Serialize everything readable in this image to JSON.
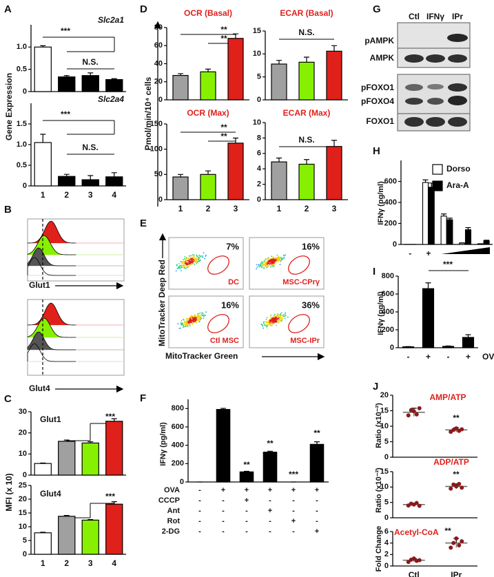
{
  "chart_data": [
    {
      "type": "bar",
      "title": "Slc2a1",
      "values": [
        1.0,
        0.33,
        0.36,
        0.27
      ],
      "errors": [
        0.03,
        0.03,
        0.06,
        0.02
      ],
      "colors": [
        "#ffffff",
        "#000000",
        "#000000",
        "#000000"
      ],
      "ylim": [
        0,
        1.5
      ],
      "yticks": [
        0,
        0.5,
        {
          "value": 1,
          "label": "1.0"
        }
      ],
      "annotations": [
        "***",
        "N.S."
      ]
    },
    {
      "type": "bar",
      "title": "Slc2a4",
      "categories": [
        "1",
        "2",
        "3",
        "4"
      ],
      "values": [
        1.05,
        0.23,
        0.15,
        0.22
      ],
      "errors": [
        0.2,
        0.05,
        0.1,
        0.1
      ],
      "colors": [
        "#ffffff",
        "#000000",
        "#000000",
        "#000000"
      ],
      "ylim": [
        0,
        2
      ],
      "yticks": [
        0,
        0.5,
        {
          "value": 1,
          "label": "1.0"
        },
        1.5
      ],
      "annotations": [
        "***",
        "N.S."
      ]
    },
    {
      "type": "bar",
      "title": "Glut1",
      "values": [
        5.5,
        16,
        15.2,
        25.5
      ],
      "errors": [
        0.2,
        0.6,
        0.6,
        1.2
      ],
      "colors": [
        "#ffffff",
        "#a0a0a0",
        "#86f000",
        "#e0201b"
      ],
      "ylim": [
        0,
        30
      ],
      "yticks": [
        0,
        10,
        20,
        30
      ],
      "annotations": [
        "***"
      ]
    },
    {
      "type": "bar",
      "title": "Glut4",
      "categories": [
        "1",
        "2",
        "3",
        "4"
      ],
      "values": [
        7.8,
        13.8,
        12.4,
        18.2
      ],
      "errors": [
        0.2,
        0.3,
        0.2,
        0.9
      ],
      "colors": [
        "#ffffff",
        "#a0a0a0",
        "#86f000",
        "#e0201b"
      ],
      "ylim": [
        0,
        25
      ],
      "yticks": [
        0,
        5,
        10,
        15,
        20,
        25
      ],
      "annotations": [
        "***"
      ]
    },
    {
      "type": "bar",
      "title": "OCR (Basal)",
      "values": [
        27,
        31,
        68
      ],
      "errors": [
        2,
        3,
        5
      ],
      "colors": [
        "#a0a0a0",
        "#86f000",
        "#e0201b"
      ],
      "ylim": [
        0,
        80
      ],
      "yticks": [
        0,
        20,
        40,
        60,
        80
      ],
      "annotations": [
        "**",
        "**"
      ]
    },
    {
      "type": "bar",
      "title": "ECAR (Basal)",
      "values": [
        7.8,
        8.2,
        10.6
      ],
      "errors": [
        0.8,
        1.1,
        1.2
      ],
      "colors": [
        "#a0a0a0",
        "#86f000",
        "#e0201b"
      ],
      "ylim": [
        0,
        15
      ],
      "yticks": [
        0,
        5,
        10,
        15
      ],
      "annotations": [
        "N.S."
      ]
    },
    {
      "type": "bar",
      "title": "OCR (Max)",
      "categories": [
        "1",
        "2",
        "3"
      ],
      "values": [
        45,
        50,
        112
      ],
      "errors": [
        5,
        7,
        10
      ],
      "colors": [
        "#a0a0a0",
        "#86f000",
        "#e0201b"
      ],
      "ylim": [
        0,
        150
      ],
      "yticks": [
        0,
        50,
        100,
        150
      ],
      "annotations": [
        "**",
        "**"
      ]
    },
    {
      "type": "bar",
      "title": "ECAR (Max)",
      "categories": [
        "1",
        "2",
        "3"
      ],
      "values": [
        4.9,
        4.6,
        6.9
      ],
      "errors": [
        0.5,
        0.6,
        0.8
      ],
      "colors": [
        "#a0a0a0",
        "#86f000",
        "#e0201b"
      ],
      "ylim": [
        0,
        10
      ],
      "yticks": [
        0,
        2,
        4,
        6,
        8,
        10
      ],
      "annotations": [
        "N.S."
      ]
    },
    {
      "type": "bar",
      "ylabel": "IFNγ (pg/ml)",
      "values": [
        0,
        790,
        110,
        325,
        0,
        410
      ],
      "errors": [
        0,
        12,
        6,
        10,
        0,
        28
      ],
      "color": "#000000",
      "ylim": [
        0,
        900
      ],
      "yticks": [
        0,
        200,
        400,
        600,
        800
      ],
      "annotations": [
        "**",
        "**",
        "***",
        "**"
      ],
      "conditions": [
        {
          "name": "OVA",
          "signs": [
            "-",
            "+",
            "+",
            "+",
            "+",
            "+"
          ]
        },
        {
          "name": "CCCP",
          "signs": [
            "-",
            "-",
            "+",
            "-",
            "-",
            "-"
          ]
        },
        {
          "name": "Ant",
          "signs": [
            "-",
            "-",
            "-",
            "+",
            "-",
            "-"
          ]
        },
        {
          "name": "Rot",
          "signs": [
            "-",
            "-",
            "-",
            "-",
            "+",
            "-"
          ]
        },
        {
          "name": "2-DG",
          "signs": [
            "-",
            "-",
            "-",
            "-",
            "-",
            "+"
          ]
        }
      ]
    },
    {
      "type": "grouped_bar",
      "ylabel": "IFNγ (pg/ml)",
      "categories": [
        "-",
        "+",
        null,
        null,
        null
      ],
      "series": [
        {
          "name": "Dorso",
          "color": "#ffffff",
          "values": [
            0,
            590,
            270,
            12,
            5
          ],
          "errors": [
            0,
            25,
            20,
            3,
            2
          ]
        },
        {
          "name": "Ara-A",
          "color": "#000000",
          "values": [
            0,
            545,
            235,
            140,
            35
          ],
          "errors": [
            0,
            40,
            15,
            20,
            5
          ]
        }
      ],
      "ylim": [
        0,
        800
      ],
      "yticks": [
        0,
        200,
        400,
        600
      ]
    },
    {
      "type": "bar",
      "ylabel": "IFNγ (pg/ml)",
      "categories": [
        "-",
        "+",
        "-",
        "+"
      ],
      "xlabel": "OVA",
      "values": [
        10,
        660,
        15,
        115
      ],
      "errors": [
        3,
        65,
        4,
        30
      ],
      "color": "#000000",
      "ylim": [
        0,
        800
      ],
      "yticks": [
        0,
        200,
        400,
        600,
        800
      ],
      "annotations": [
        "***"
      ]
    },
    {
      "type": "dot",
      "title": "AMP/ATP",
      "ylabel": "Ratio (x10⁻²)",
      "points": [
        [
          13.5,
          15.2,
          14.8,
          13.8,
          15.8
        ],
        [
          8.2,
          8.8,
          9.3,
          8.5,
          9.0
        ]
      ],
      "means": [
        14.5,
        8.8
      ],
      "errors": [
        1.3,
        0.7
      ],
      "color": "#8b1a1a",
      "ylim": [
        0,
        20
      ],
      "yticks": [
        0,
        5,
        10,
        15,
        20
      ],
      "annotations": [
        "**"
      ]
    },
    {
      "type": "dot",
      "title": "ADP/ATP",
      "ylabel": "Ratio (x10⁻²)",
      "points": [
        [
          4.0,
          4.6,
          4.3,
          4.8,
          3.9
        ],
        [
          9.5,
          10.8,
          10.2,
          11.0,
          9.8
        ]
      ],
      "means": [
        4.3,
        10.2
      ],
      "errors": [
        0.5,
        0.8
      ],
      "color": "#8b1a1a",
      "ylim": [
        0,
        15
      ],
      "yticks": [
        0,
        5,
        10,
        15
      ],
      "annotations": [
        "**"
      ]
    },
    {
      "type": "dot",
      "title": "Acetyl-CoA",
      "ylabel": "Fold Change",
      "categories": [
        "Ctl",
        "IPr"
      ],
      "points": [
        [
          0.7,
          1.1,
          1.3,
          0.9,
          1.0
        ],
        [
          3.2,
          4.0,
          4.8,
          3.6,
          4.3
        ]
      ],
      "means": [
        1.0,
        4.0
      ],
      "errors": [
        0.3,
        0.8
      ],
      "color": "#8b1a1a",
      "ylim": [
        0,
        6
      ],
      "yticks": [
        0,
        2,
        4,
        6
      ],
      "annotations": [
        "**"
      ]
    }
  ],
  "panel_labels": [
    "A",
    "B",
    "C",
    "D",
    "E",
    "F",
    "G",
    "H",
    "I",
    "J"
  ],
  "panel_a": {
    "ylabel": "Gene Expression"
  },
  "panel_b": {
    "markers": [
      "Glut1",
      "Glut4"
    ]
  },
  "panel_c": {
    "ylabel": "MFI (x 10)"
  },
  "panel_d": {
    "ylabel": "Pmol/min/10⁴ cells"
  },
  "panel_e": {
    "ylabel": "MitoTracker Deep Red",
    "xlabel": "MitoTracker Green",
    "plots": [
      {
        "percent": "7%",
        "label": "DC"
      },
      {
        "percent": "16%",
        "label": "MSC-CPrγ"
      },
      {
        "percent": "16%",
        "label": "Ctl MSC"
      },
      {
        "percent": "36%",
        "label": "MSC-IPr"
      }
    ]
  },
  "panel_g": {
    "columns": [
      "Ctl",
      "IFNγ",
      "IPr"
    ],
    "rows": [
      "pAMPK",
      "AMPK",
      "pFOXO1",
      "pFOXO4",
      "FOXO1"
    ]
  }
}
